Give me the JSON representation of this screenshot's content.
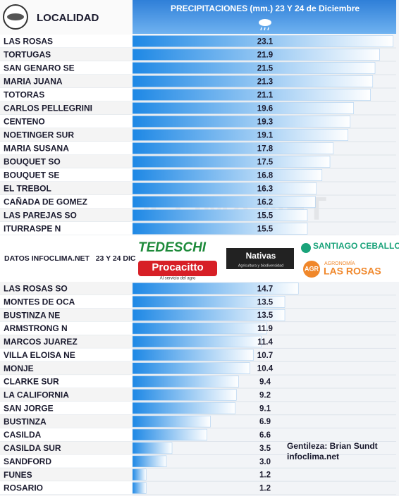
{
  "chart_data": {
    "type": "bar",
    "orientation": "horizontal",
    "header": {
      "locality": "LOCALIDAD",
      "title": "PRECIPITACIONES (mm.) 23 Y 24 de Diciembre"
    },
    "categories": [
      "LAS ROSAS",
      "TORTUGAS",
      "SAN GENARO SE",
      "MARIA JUANA",
      "TOTORAS",
      "CARLOS PELLEGRINI",
      "CENTENO",
      "NOETINGER SUR",
      "MARIA SUSANA",
      "BOUQUET SO",
      "BOUQUET SE",
      "EL TREBOL",
      "CAÑADA DE GOMEZ",
      "LAS PAREJAS SO",
      "ITURRASPE N",
      "LAS ROSAS SO",
      "MONTES DE OCA",
      "BUSTINZA NE",
      "ARMSTRONG N",
      "MARCOS JUAREZ",
      "VILLA ELOISA NE",
      "MONJE",
      "CLARKE SUR",
      "LA CALIFORNIA",
      "SAN JORGE",
      "BUSTINZA",
      "CASILDA",
      "CASILDA SUR",
      "SANDFORD",
      "FUNES",
      "ROSARIO"
    ],
    "values": [
      23.1,
      21.9,
      21.5,
      21.3,
      21.1,
      19.6,
      19.3,
      19.1,
      17.8,
      17.5,
      16.8,
      16.3,
      16.2,
      15.5,
      15.5,
      14.7,
      13.5,
      13.5,
      11.9,
      11.4,
      10.7,
      10.4,
      9.4,
      9.2,
      9.1,
      6.9,
      6.6,
      3.5,
      3.0,
      1.2,
      1.2
    ],
    "value_labels": [
      "23.1",
      "21.9",
      "21.5",
      "21.3",
      "21.1",
      "19.6",
      "19.3",
      "19.1",
      "17.8",
      "17.5",
      "16.8",
      "16.3",
      "16.2",
      "15.5",
      "15.5",
      "14.7",
      "13.5",
      "13.5",
      "11.9",
      "11.4",
      "10.7",
      "10.4",
      "9.4",
      "9.2",
      "9.1",
      "6.9",
      "6.6",
      "3.5",
      "3.0",
      "1.2",
      "1.2"
    ],
    "color": "#1e88e5",
    "band": {
      "source": "DATOS INFOCLIMA.NET   23 Y 24 DIC",
      "sponsors": [
        "TEDESCHI",
        "Procacitto",
        "Al servicio del agro",
        "Nativas",
        "Agricultura y biodiversidad",
        "SANTIAGO CEBALLOS",
        "AGR",
        "AGRONOMÍA",
        "LAS ROSAS"
      ]
    },
    "credit": [
      "Gentileza: Brian Sundt",
      "infoclima.net"
    ],
    "watermark": "INFOCLIMA.NET"
  }
}
